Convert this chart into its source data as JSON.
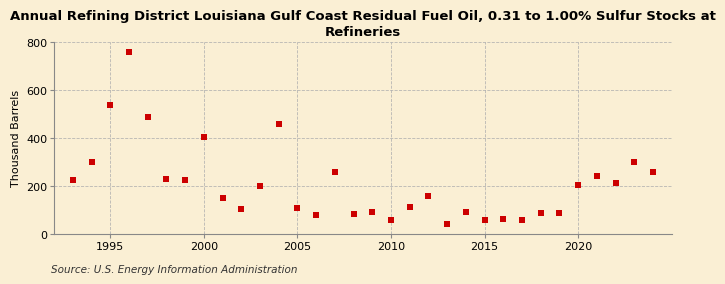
{
  "title": "Annual Refining District Louisiana Gulf Coast Residual Fuel Oil, 0.31 to 1.00% Sulfur Stocks at\nRefineries",
  "ylabel": "Thousand Barrels",
  "source": "Source: U.S. Energy Information Administration",
  "background_color": "#faefd4",
  "marker_color": "#cc0000",
  "years": [
    1993,
    1994,
    1995,
    1996,
    1997,
    1998,
    1999,
    2000,
    2001,
    2002,
    2003,
    2004,
    2005,
    2006,
    2007,
    2008,
    2009,
    2010,
    2011,
    2012,
    2013,
    2014,
    2015,
    2016,
    2017,
    2018,
    2019,
    2020,
    2021,
    2022,
    2023,
    2024
  ],
  "values": [
    225,
    300,
    540,
    760,
    490,
    230,
    225,
    405,
    150,
    105,
    200,
    460,
    110,
    80,
    260,
    85,
    95,
    60,
    115,
    160,
    45,
    95,
    60,
    65,
    60,
    90,
    90,
    205,
    245,
    215,
    300,
    260
  ],
  "xlim": [
    1992,
    2025
  ],
  "ylim": [
    0,
    800
  ],
  "yticks": [
    0,
    200,
    400,
    600,
    800
  ],
  "xticks": [
    1995,
    2000,
    2005,
    2010,
    2015,
    2020
  ],
  "grid_color": "#b0b0b0",
  "title_fontsize": 9.5,
  "label_fontsize": 8,
  "tick_fontsize": 8,
  "source_fontsize": 7.5
}
